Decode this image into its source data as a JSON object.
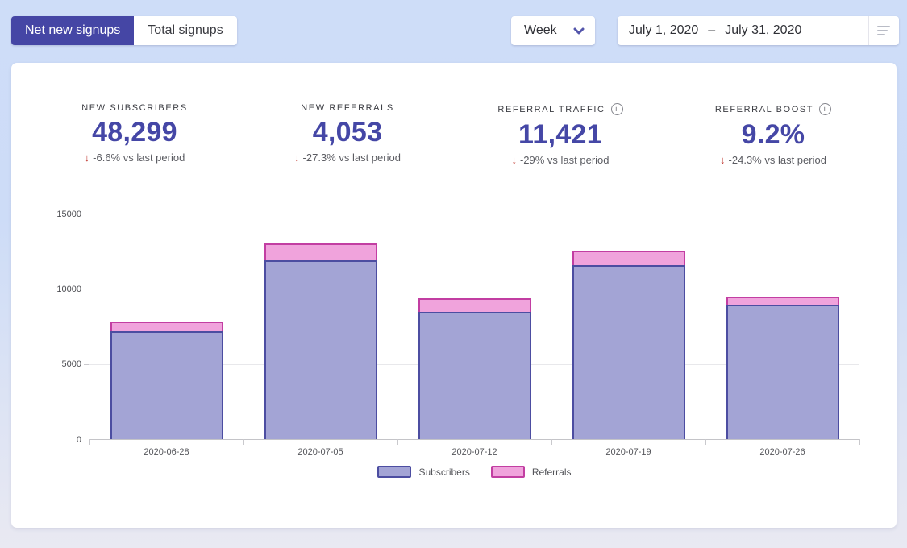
{
  "toolbar": {
    "view_toggle": {
      "options": [
        {
          "label": "Net new signups",
          "active": true
        },
        {
          "label": "Total signups",
          "active": false
        }
      ]
    },
    "interval": {
      "value": "Week"
    },
    "date_range": {
      "start": "July 1, 2020",
      "separator": "–",
      "end": "July 31, 2020"
    }
  },
  "icons": {
    "trend_down": "↓",
    "info": "i"
  },
  "stats": [
    {
      "label": "NEW SUBSCRIBERS",
      "value": "48,299",
      "change": "-6.6% vs last period",
      "trend": "down"
    },
    {
      "label": "NEW REFERRALS",
      "value": "4,053",
      "change": "-27.3% vs last period",
      "trend": "down"
    },
    {
      "label": "REFERRAL TRAFFIC",
      "value": "11,421",
      "change": "-29% vs last period",
      "trend": "down",
      "info": true
    },
    {
      "label": "REFERRAL BOOST",
      "value": "9.2%",
      "change": "-24.3% vs last period",
      "trend": "down",
      "info": true
    }
  ],
  "chart_data": {
    "type": "bar",
    "stacked": true,
    "title": "",
    "xlabel": "",
    "ylabel": "",
    "categories": [
      "2020-06-28",
      "2020-07-05",
      "2020-07-12",
      "2020-07-19",
      "2020-07-26"
    ],
    "series": [
      {
        "name": "Subscribers",
        "values": [
          7200,
          11900,
          8450,
          11550,
          8950
        ],
        "fill": "#a3a4d5",
        "stroke": "#4c4da1"
      },
      {
        "name": "Referrals",
        "values": [
          600,
          1100,
          950,
          1000,
          530
        ],
        "fill": "#f0a3dc",
        "stroke": "#c23ea2"
      }
    ],
    "ylim": [
      0,
      15000
    ],
    "yticks": [
      0,
      5000,
      10000,
      15000
    ],
    "grid": true,
    "legend_position": "bottom"
  },
  "colors": {
    "accent": "#4546a5",
    "negative": "#c13a32",
    "card": "#ffffff",
    "bg_top": "#ceddf8",
    "bg_bottom": "#e9e9f2"
  }
}
